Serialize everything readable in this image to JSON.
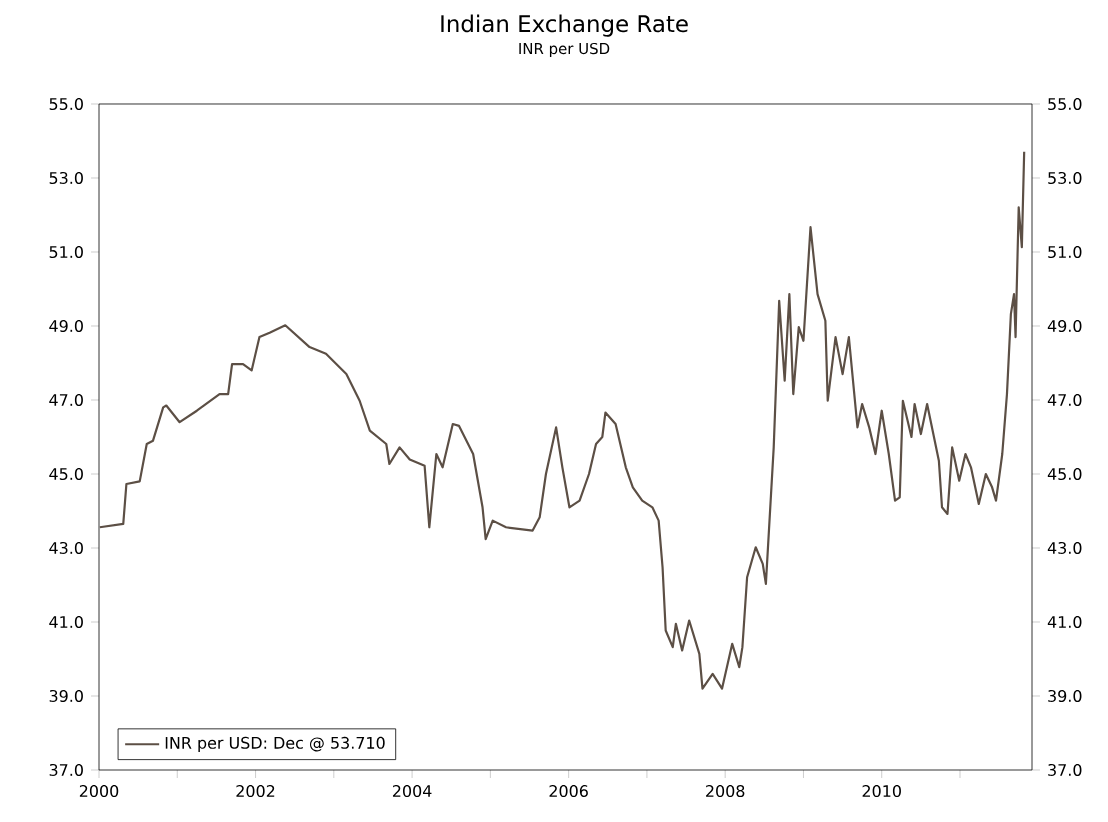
{
  "chart_data": {
    "type": "line",
    "title": "Indian Exchange Rate",
    "subtitle": "INR per USD",
    "x": [
      2000.01,
      2000.31,
      2000.35,
      2000.52,
      2000.61,
      2000.69,
      2000.82,
      2000.86,
      2001.03,
      2001.25,
      2001.54,
      2001.65,
      2001.7,
      2001.84,
      2001.95,
      2002.05,
      2002.18,
      2002.38,
      2002.69,
      2002.9,
      2003.16,
      2003.33,
      2003.46,
      2003.67,
      2003.71,
      2003.84,
      2003.97,
      2004.16,
      2004.22,
      2004.31,
      2004.39,
      2004.52,
      2004.6,
      2004.78,
      2004.9,
      2004.94,
      2005.03,
      2005.2,
      2005.54,
      2005.63,
      2005.71,
      2005.84,
      2005.92,
      2006.01,
      2006.14,
      2006.26,
      2006.35,
      2006.43,
      2006.47,
      2006.6,
      2006.73,
      2006.82,
      2006.94,
      2007.07,
      2007.15,
      2007.2,
      2007.24,
      2007.33,
      2007.37,
      2007.45,
      2007.54,
      2007.67,
      2007.71,
      2007.84,
      2007.96,
      2008.09,
      2008.18,
      2008.22,
      2008.28,
      2008.39,
      2008.48,
      2008.52,
      2008.62,
      2008.69,
      2008.76,
      2008.82,
      2008.87,
      2008.94,
      2009.0,
      2009.09,
      2009.18,
      2009.28,
      2009.31,
      2009.41,
      2009.5,
      2009.58,
      2009.69,
      2009.75,
      2009.84,
      2009.92,
      2010.0,
      2010.09,
      2010.17,
      2010.23,
      2010.27,
      2010.38,
      2010.42,
      2010.5,
      2010.58,
      2010.73,
      2010.77,
      2010.84,
      2010.9,
      2010.99,
      2011.07,
      2011.14,
      2011.24,
      2011.33,
      2011.41,
      2011.46,
      2011.54,
      2011.6,
      2011.65,
      2011.69,
      2011.71,
      2011.75,
      2011.79,
      2011.82
    ],
    "series": [
      {
        "name": "INR per USD: Dec @ 53.710",
        "color": "#5c4f45",
        "values": [
          43.56,
          43.65,
          44.73,
          44.8,
          45.81,
          45.9,
          46.8,
          46.85,
          46.4,
          46.71,
          47.16,
          47.16,
          47.97,
          47.97,
          47.8,
          48.7,
          48.82,
          49.02,
          48.43,
          48.25,
          47.7,
          46.98,
          46.17,
          45.81,
          45.27,
          45.72,
          45.39,
          45.22,
          43.56,
          45.54,
          45.18,
          46.35,
          46.3,
          45.54,
          44.1,
          43.24,
          43.74,
          43.56,
          43.47,
          43.83,
          45.0,
          46.26,
          45.18,
          44.1,
          44.28,
          45.0,
          45.81,
          46.0,
          46.66,
          46.35,
          45.18,
          44.64,
          44.28,
          44.1,
          43.74,
          42.48,
          40.77,
          40.32,
          40.95,
          40.23,
          41.04,
          40.14,
          39.2,
          39.6,
          39.2,
          40.41,
          39.78,
          40.32,
          42.21,
          43.02,
          42.57,
          42.03,
          45.72,
          49.68,
          47.52,
          49.86,
          47.16,
          48.97,
          48.6,
          51.67,
          49.86,
          49.14,
          46.98,
          48.7,
          47.7,
          48.7,
          46.26,
          46.89,
          46.26,
          45.54,
          46.71,
          45.54,
          44.28,
          44.37,
          46.98,
          46.0,
          46.89,
          46.08,
          46.89,
          45.36,
          44.1,
          43.92,
          45.72,
          44.82,
          45.54,
          45.18,
          44.19,
          45.0,
          44.64,
          44.28,
          45.54,
          47.16,
          49.32,
          49.86,
          48.7,
          52.21,
          51.13,
          53.71
        ]
      }
    ],
    "xlim": [
      2000,
      2011.92
    ],
    "xticks": [
      2000,
      {
        "value": 2001,
        "label": null
      },
      2002,
      {
        "value": 2003,
        "label": null
      },
      2004,
      {
        "value": 2005,
        "label": null
      },
      2006,
      {
        "value": 2007,
        "label": null
      },
      2008,
      {
        "value": 2009,
        "label": null
      },
      2010,
      {
        "value": 2011,
        "label": null
      }
    ],
    "ylim": [
      37,
      55
    ],
    "yticks": [
      {
        "value": 37,
        "label": "37.0"
      },
      {
        "value": 39,
        "label": "39.0"
      },
      {
        "value": 41,
        "label": "41.0"
      },
      {
        "value": 43,
        "label": "43.0"
      },
      {
        "value": 45,
        "label": "45.0"
      },
      {
        "value": 47,
        "label": "47.0"
      },
      {
        "value": 49,
        "label": "49.0"
      },
      {
        "value": 51,
        "label": "51.0"
      },
      {
        "value": 53,
        "label": "53.0"
      },
      {
        "value": 55,
        "label": "55.0"
      }
    ],
    "y2lim": [
      37,
      55
    ],
    "y2ticks": [
      {
        "value": 37,
        "label": "37.0"
      },
      {
        "value": 39,
        "label": "39.0"
      },
      {
        "value": 41,
        "label": "41.0"
      },
      {
        "value": 43,
        "label": "43.0"
      },
      {
        "value": 45,
        "label": "45.0"
      },
      {
        "value": 47,
        "label": "47.0"
      },
      {
        "value": 49,
        "label": "49.0"
      },
      {
        "value": 51,
        "label": "51.0"
      },
      {
        "value": 53,
        "label": "53.0"
      },
      {
        "value": 55,
        "label": "55.0"
      }
    ],
    "legend": "bottom left",
    "grid": false,
    "line_style": "solid",
    "marker": "none"
  }
}
